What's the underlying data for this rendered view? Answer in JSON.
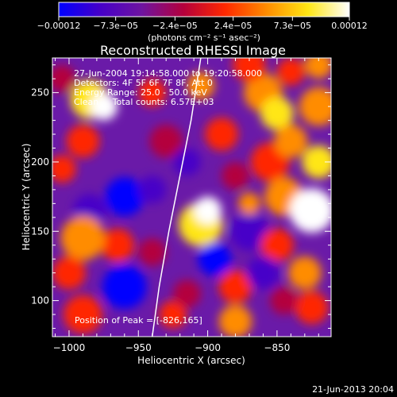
{
  "chart_data": {
    "type": "heatmap",
    "title": "Reconstructed RHESSI Image",
    "xlabel": "Heliocentric X (arcsec)",
    "ylabel": "Heliocentric Y (arcsec)",
    "xlim": [
      -1012,
      -811
    ],
    "ylim": [
      74,
      275
    ],
    "x_ticks": [
      -1000,
      -950,
      -900,
      -850
    ],
    "x_tick_labels": [
      "−1000",
      "−950",
      "−900",
      "−850"
    ],
    "y_ticks": [
      100,
      150,
      200,
      250
    ],
    "y_tick_labels": [
      "100",
      "150",
      "200",
      "250"
    ],
    "colorbar": {
      "range": [
        -0.00012,
        0.00012
      ],
      "ticks": [
        -0.00012,
        -7.3e-05,
        -2.4e-05,
        2.4e-05,
        7.3e-05,
        0.00012
      ],
      "tick_labels": [
        "−0.00012",
        "−7.3e−05",
        "−2.4e−05",
        "2.4e−05",
        "7.3e−05",
        "0.00012"
      ],
      "unit_label": "(photons cm⁻² s⁻¹ asec⁻²)"
    },
    "annotations": {
      "time_range": "27-Jun-2004 19:14:58.000 to 19:20:58.000",
      "detectors": "Detectors: 4F 5F 6F 7F 8F, Att 0",
      "energy_range": "Energy Range: 25.0 - 50.0 keV",
      "clean_counts": "Clean     Total counts: 6.57E+03",
      "peak": "Position of Peak = [-826,165]"
    },
    "peak_position": [
      -826,
      165
    ],
    "solar_limb_curve": [
      [
        -940,
        74
      ],
      [
        -935,
        110
      ],
      [
        -928,
        150
      ],
      [
        -920,
        190
      ],
      [
        -912,
        230
      ],
      [
        -905,
        275
      ]
    ],
    "grid": false,
    "legend": "none",
    "colors": {
      "background": "#000000",
      "foreground": "#ffffff",
      "colormap": [
        "#0000ff",
        "#4600c8",
        "#6e14a0",
        "#b4003c",
        "#ff2800",
        "#ff8c00",
        "#ffe614",
        "#ffffff"
      ]
    }
  },
  "footer": {
    "date_stamp": "21-Jun-2013 20:04"
  }
}
